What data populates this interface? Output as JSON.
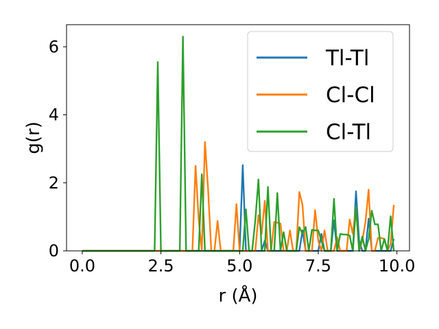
{
  "chart_data": {
    "type": "line",
    "xlabel": "r (Å)",
    "ylabel": "g(r)",
    "xlim": [
      -0.5,
      10.4
    ],
    "ylim": [
      0,
      6.65
    ],
    "xticks": [
      0.0,
      2.5,
      5.0,
      7.5,
      10.0
    ],
    "xtick_labels": [
      "0.0",
      "2.5",
      "5.0",
      "7.5",
      "10.0"
    ],
    "yticks": [
      0,
      2,
      4,
      6
    ],
    "ytick_labels": [
      "0",
      "2",
      "4",
      "6"
    ],
    "grid": false,
    "legend_position": "upper right",
    "series": [
      {
        "name": "Tl-Tl",
        "color": "#1f77b4",
        "points": [
          [
            0.0,
            0
          ],
          [
            4.9,
            0
          ],
          [
            5.0,
            0
          ],
          [
            5.1,
            2.52
          ],
          [
            5.2,
            0
          ],
          [
            5.3,
            0
          ],
          [
            5.5,
            0
          ],
          [
            5.6,
            0
          ],
          [
            5.7,
            0
          ],
          [
            5.8,
            0.3
          ],
          [
            5.9,
            0
          ],
          [
            6.0,
            0
          ],
          [
            6.1,
            0
          ],
          [
            6.2,
            0
          ],
          [
            6.3,
            0
          ],
          [
            6.4,
            0
          ],
          [
            6.5,
            0
          ],
          [
            6.6,
            0
          ],
          [
            6.7,
            0
          ],
          [
            6.8,
            0
          ],
          [
            6.9,
            0
          ],
          [
            7.0,
            0.6
          ],
          [
            7.1,
            0
          ],
          [
            7.2,
            0
          ],
          [
            7.3,
            0
          ],
          [
            7.4,
            0
          ],
          [
            7.5,
            0
          ],
          [
            7.6,
            0.5
          ],
          [
            7.7,
            0
          ],
          [
            7.8,
            0
          ],
          [
            7.9,
            0
          ],
          [
            8.0,
            0.9
          ],
          [
            8.1,
            0
          ],
          [
            8.2,
            0
          ],
          [
            8.3,
            0
          ],
          [
            8.4,
            0
          ],
          [
            8.5,
            0
          ],
          [
            8.6,
            0
          ],
          [
            8.7,
            1.75
          ],
          [
            8.8,
            0.3
          ],
          [
            8.9,
            0
          ],
          [
            9.0,
            0
          ],
          [
            9.1,
            0.95
          ],
          [
            9.2,
            0
          ],
          [
            9.3,
            0
          ],
          [
            9.4,
            0
          ],
          [
            9.5,
            0
          ],
          [
            9.6,
            0
          ],
          [
            9.7,
            0
          ],
          [
            9.8,
            0
          ],
          [
            9.9,
            0.35
          ]
        ]
      },
      {
        "name": "Cl-Cl",
        "color": "#ff7f0e",
        "points": [
          [
            0.0,
            0
          ],
          [
            3.5,
            0
          ],
          [
            3.6,
            2.5
          ],
          [
            3.7,
            0.9
          ],
          [
            3.8,
            0
          ],
          [
            3.9,
            3.2
          ],
          [
            4.0,
            1.8
          ],
          [
            4.1,
            0
          ],
          [
            4.2,
            0
          ],
          [
            4.3,
            0.88
          ],
          [
            4.4,
            0
          ],
          [
            4.5,
            0
          ],
          [
            4.6,
            0
          ],
          [
            4.7,
            0
          ],
          [
            4.8,
            0
          ],
          [
            4.9,
            1.37
          ],
          [
            5.0,
            0
          ],
          [
            5.1,
            0
          ],
          [
            5.2,
            0
          ],
          [
            5.3,
            0
          ],
          [
            5.4,
            0
          ],
          [
            5.5,
            0
          ],
          [
            5.6,
            1.05
          ],
          [
            5.7,
            0.5
          ],
          [
            5.8,
            1.47
          ],
          [
            5.9,
            0
          ],
          [
            6.0,
            0
          ],
          [
            6.1,
            0.85
          ],
          [
            6.2,
            0.83
          ],
          [
            6.3,
            0.8
          ],
          [
            6.4,
            0
          ],
          [
            6.5,
            0
          ],
          [
            6.6,
            0.6
          ],
          [
            6.7,
            0
          ],
          [
            6.8,
            0
          ],
          [
            6.9,
            1.73
          ],
          [
            7.0,
            1.35
          ],
          [
            7.1,
            0
          ],
          [
            7.2,
            0
          ],
          [
            7.3,
            0
          ],
          [
            7.4,
            1.2
          ],
          [
            7.5,
            0.3
          ],
          [
            7.6,
            0
          ],
          [
            7.7,
            0.6
          ],
          [
            7.8,
            0
          ],
          [
            7.9,
            0
          ],
          [
            8.0,
            0
          ],
          [
            8.1,
            0.4
          ],
          [
            8.2,
            0
          ],
          [
            8.3,
            0
          ],
          [
            8.4,
            0
          ],
          [
            8.5,
            0.92
          ],
          [
            8.6,
            0.5
          ],
          [
            8.7,
            1.3
          ],
          [
            8.8,
            0
          ],
          [
            8.9,
            0.3
          ],
          [
            9.0,
            0.85
          ],
          [
            9.1,
            1.8
          ],
          [
            9.2,
            0
          ],
          [
            9.3,
            0
          ],
          [
            9.4,
            0.38
          ],
          [
            9.5,
            0.38
          ],
          [
            9.6,
            0.35
          ],
          [
            9.7,
            0
          ],
          [
            9.8,
            0.2
          ],
          [
            9.9,
            1.35
          ]
        ]
      },
      {
        "name": "Cl-Tl",
        "color": "#2ca02c",
        "points": [
          [
            0.0,
            0
          ],
          [
            2.2,
            0
          ],
          [
            2.3,
            0
          ],
          [
            2.4,
            5.55
          ],
          [
            2.5,
            0
          ],
          [
            2.6,
            0
          ],
          [
            3.0,
            0
          ],
          [
            3.1,
            0
          ],
          [
            3.2,
            6.3
          ],
          [
            3.3,
            0
          ],
          [
            3.4,
            0
          ],
          [
            3.7,
            0
          ],
          [
            3.8,
            2.25
          ],
          [
            3.9,
            0
          ],
          [
            4.0,
            0
          ],
          [
            5.0,
            0
          ],
          [
            5.1,
            0
          ],
          [
            5.2,
            1.22
          ],
          [
            5.3,
            0
          ],
          [
            5.4,
            0
          ],
          [
            5.5,
            0.9
          ],
          [
            5.6,
            2.1
          ],
          [
            5.7,
            0
          ],
          [
            5.8,
            0
          ],
          [
            5.9,
            1.88
          ],
          [
            6.0,
            0
          ],
          [
            6.1,
            0
          ],
          [
            6.2,
            1.7
          ],
          [
            6.3,
            0
          ],
          [
            6.4,
            0.55
          ],
          [
            6.5,
            0
          ],
          [
            6.6,
            0
          ],
          [
            6.7,
            0
          ],
          [
            6.8,
            0
          ],
          [
            6.9,
            0.7
          ],
          [
            7.0,
            0.5
          ],
          [
            7.1,
            0.7
          ],
          [
            7.2,
            0
          ],
          [
            7.3,
            0.62
          ],
          [
            7.4,
            0.6
          ],
          [
            7.5,
            0.6
          ],
          [
            7.6,
            0.3
          ],
          [
            7.7,
            0
          ],
          [
            7.8,
            0
          ],
          [
            7.9,
            0
          ],
          [
            8.0,
            1.53
          ],
          [
            8.1,
            0
          ],
          [
            8.2,
            0.5
          ],
          [
            8.3,
            0.48
          ],
          [
            8.4,
            0.48
          ],
          [
            8.5,
            0.45
          ],
          [
            8.6,
            0
          ],
          [
            8.7,
            1.3
          ],
          [
            8.8,
            0
          ],
          [
            8.9,
            0.42
          ],
          [
            9.0,
            0
          ],
          [
            9.1,
            0.35
          ],
          [
            9.2,
            1.18
          ],
          [
            9.3,
            0.78
          ],
          [
            9.4,
            0.78
          ],
          [
            9.5,
            0
          ],
          [
            9.6,
            0.35
          ],
          [
            9.7,
            0
          ],
          [
            9.8,
            1.02
          ],
          [
            9.9,
            0
          ]
        ]
      }
    ]
  }
}
